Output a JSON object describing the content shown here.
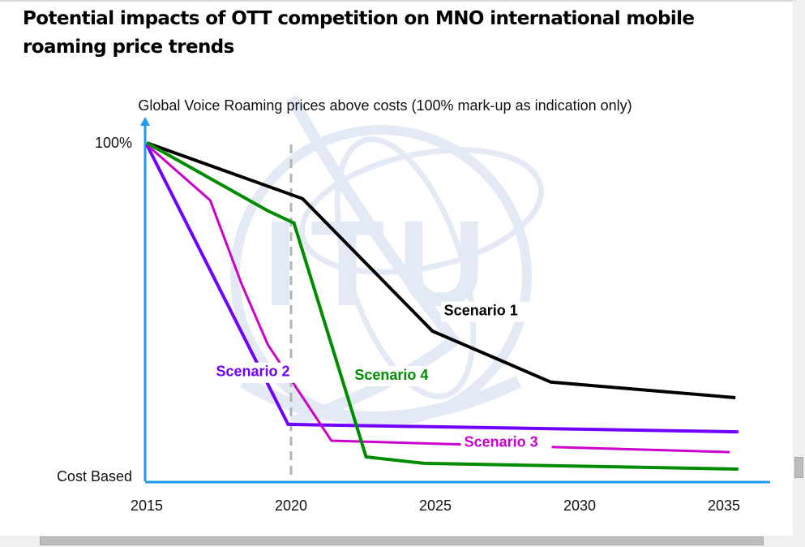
{
  "slide": {
    "title": "Potential impacts of OTT competition on MNO international mobile roaming price trends"
  },
  "watermark": {
    "text": "ITU",
    "color": "#e3eaf6"
  },
  "chart_data": {
    "type": "line",
    "title": "Global Voice Roaming prices above costs (100% mark-up as indication only)",
    "xlabel": "",
    "ylabel": "",
    "x_ticks": [
      "2015",
      "2020",
      "2025",
      "2030",
      "2035"
    ],
    "y_ticks": [
      {
        "value": 100,
        "label": "100%"
      },
      {
        "value": 0,
        "label": "Cost Based"
      }
    ],
    "xlim": [
      2015,
      2036
    ],
    "ylim": [
      0,
      100
    ],
    "grid": false,
    "reference_line": {
      "x": 2020,
      "style": "dashed",
      "color": "#b3b3b3"
    },
    "axis_color": "#1e9bf0",
    "series": [
      {
        "name": "Scenario 1",
        "color": "#000000",
        "label_pos": {
          "x": 2025.3,
          "y": 49
        },
        "points": [
          [
            2015,
            100
          ],
          [
            2020.4,
            83.5
          ],
          [
            2024.9,
            44.4
          ],
          [
            2029,
            29.3
          ],
          [
            2035.4,
            24.7
          ]
        ]
      },
      {
        "name": "Scenario 2",
        "color": "#7000ff",
        "label_pos": {
          "x": 2017.4,
          "y": 31
        },
        "points": [
          [
            2015,
            99.5
          ],
          [
            2019.9,
            16.8
          ],
          [
            2035.5,
            14.6
          ]
        ]
      },
      {
        "name": "Scenario 3",
        "color": "#cc00cc",
        "label_pos": {
          "x": 2026,
          "y": 10.2
        },
        "points": [
          [
            2015,
            99.5
          ],
          [
            2017.2,
            83
          ],
          [
            2018.3,
            58
          ],
          [
            2019.2,
            40.3
          ],
          [
            2021.4,
            12
          ],
          [
            2035.2,
            8.6
          ]
        ]
      },
      {
        "name": "Scenario 4",
        "color": "#008c00",
        "label_pos": {
          "x": 2022.2,
          "y": 30
        },
        "points": [
          [
            2015,
            100
          ],
          [
            2019.2,
            79.9
          ],
          [
            2020.1,
            76.3
          ],
          [
            2022.6,
            7.2
          ],
          [
            2024.6,
            5.3
          ],
          [
            2035.5,
            3.6
          ]
        ]
      }
    ]
  }
}
